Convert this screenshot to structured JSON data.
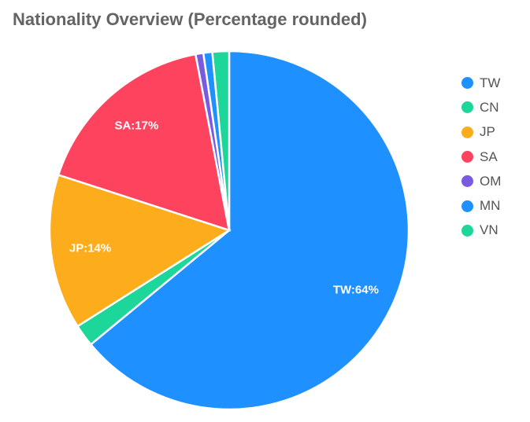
{
  "title": "Nationality Overview (Percentage rounded)",
  "chart_data": {
    "type": "pie",
    "title": "Nationality Overview (Percentage rounded)",
    "legend_position": "right",
    "start_angle_deg": 0,
    "direction": "clockwise",
    "slices": [
      {
        "label": "TW",
        "value": 64,
        "color": "#1e90ff",
        "data_label": "TW:64%"
      },
      {
        "label": "CN",
        "value": 2,
        "color": "#1cd69a",
        "data_label": ""
      },
      {
        "label": "JP",
        "value": 14,
        "color": "#fdac1c",
        "data_label": "JP:14%"
      },
      {
        "label": "SA",
        "value": 17,
        "color": "#fd435e",
        "data_label": "SA:17%"
      },
      {
        "label": "OM",
        "value": 0.7,
        "color": "#7a5ae0",
        "data_label": ""
      },
      {
        "label": "MN",
        "value": 0.8,
        "color": "#1e90ff",
        "data_label": ""
      },
      {
        "label": "VN",
        "value": 1.5,
        "color": "#1cd69a",
        "data_label": ""
      }
    ]
  }
}
